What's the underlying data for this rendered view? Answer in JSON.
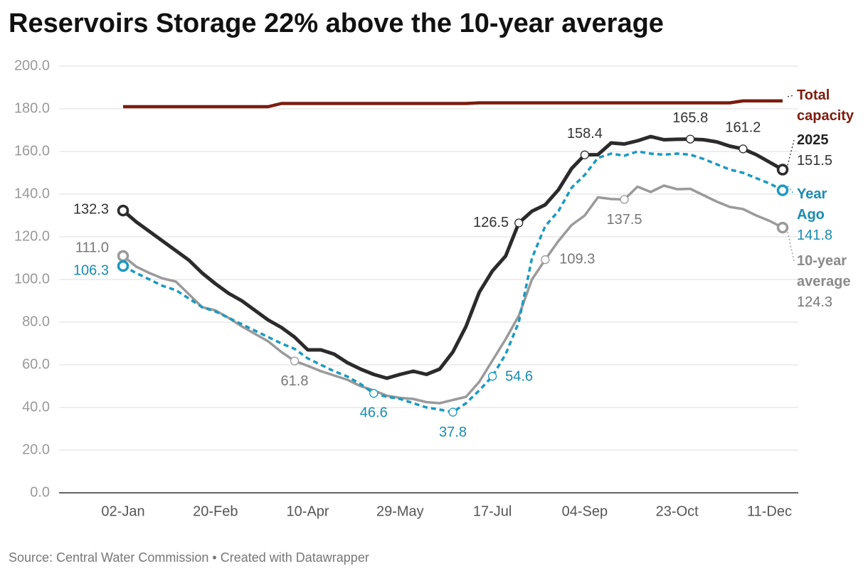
{
  "chart_data": {
    "type": "line",
    "title": "Reservoirs Storage 22% above the 10-year average",
    "source": "Source: Central Water Commission • Created with Datawrapper",
    "categories": [
      "02-Jan",
      null,
      null,
      null,
      null,
      null,
      null,
      "20-Feb",
      null,
      null,
      null,
      null,
      null,
      null,
      "10-Apr",
      null,
      null,
      null,
      null,
      null,
      null,
      "29-May",
      null,
      null,
      null,
      null,
      null,
      null,
      "17-Jul",
      null,
      null,
      null,
      null,
      null,
      null,
      "04-Sep",
      null,
      null,
      null,
      null,
      null,
      null,
      "23-Oct",
      null,
      null,
      null,
      null,
      null,
      null,
      "11-Dec",
      null
    ],
    "ylim": [
      0,
      200
    ],
    "yticks": [
      {
        "value": 0,
        "label": "0.0"
      },
      {
        "value": 20,
        "label": "20.0"
      },
      {
        "value": 40,
        "label": "40.0"
      },
      {
        "value": 60,
        "label": "60.0"
      },
      {
        "value": 80,
        "label": "80.0"
      },
      {
        "value": 100,
        "label": "100.0"
      },
      {
        "value": 120,
        "label": "120.0"
      },
      {
        "value": 140,
        "label": "140.0"
      },
      {
        "value": 160,
        "label": "160.0"
      },
      {
        "value": 180,
        "label": "180.0"
      },
      {
        "value": 200,
        "label": "200.0"
      }
    ],
    "grid": true,
    "series": [
      {
        "name": "Total capacity",
        "color": "#7b1c0e",
        "values": [
          181,
          181,
          181,
          181,
          181,
          181,
          181,
          181,
          181,
          181,
          181,
          181,
          182.5,
          182.5,
          182.5,
          182.5,
          182.5,
          182.5,
          182.5,
          182.5,
          182.5,
          182.5,
          182.5,
          182.5,
          182.5,
          182.5,
          182.5,
          182.8,
          182.8,
          182.8,
          182.8,
          182.8,
          182.8,
          182.8,
          182.8,
          182.8,
          182.8,
          182.8,
          182.8,
          182.8,
          182.8,
          182.8,
          182.8,
          182.8,
          182.8,
          182.8,
          182.8,
          183.7,
          183.7,
          183.7,
          183.7
        ]
      },
      {
        "name": "10-year average",
        "color": "#9a9a9a",
        "values": [
          111,
          106,
          103,
          100.5,
          99,
          93,
          87,
          85.5,
          82,
          78,
          74.5,
          71,
          66,
          61.8,
          59.5,
          57,
          55,
          53,
          50,
          48,
          45.5,
          44.5,
          44,
          42.5,
          42,
          43.5,
          45,
          52,
          62,
          72,
          83,
          100,
          109.3,
          118,
          125.5,
          130,
          138.5,
          137.7,
          137.5,
          143.5,
          141,
          144,
          142.3,
          142.5,
          139.5,
          136.5,
          134,
          133,
          130,
          127.5,
          124.3
        ],
        "value_labels": [
          "111.0",
          null,
          null,
          null,
          null,
          null,
          null,
          null,
          null,
          null,
          null,
          null,
          null,
          "61.8",
          null,
          null,
          null,
          null,
          null,
          null,
          null,
          null,
          null,
          null,
          null,
          null,
          null,
          null,
          null,
          null,
          null,
          null,
          "109.3",
          null,
          null,
          null,
          null,
          null,
          "137.5",
          null,
          null,
          null,
          null,
          null,
          null,
          null,
          null,
          null,
          null,
          null,
          "124.3"
        ]
      },
      {
        "name": "Year Ago",
        "color": "#1b9ac0",
        "dashed": true,
        "values": [
          106.3,
          103,
          100,
          97,
          95,
          91,
          87,
          85,
          82,
          79,
          76,
          73,
          70,
          67.5,
          63,
          60,
          57,
          54.5,
          51,
          46.6,
          45,
          44,
          42,
          40,
          39,
          37.8,
          42,
          48,
          54.6,
          65,
          80,
          110,
          125,
          132,
          143,
          149,
          157,
          159,
          158,
          160,
          159,
          158.5,
          159,
          158.5,
          156.5,
          154,
          151.5,
          150,
          147.5,
          145,
          141.8
        ],
        "value_labels": [
          "106.3",
          null,
          null,
          null,
          null,
          null,
          null,
          null,
          null,
          null,
          null,
          null,
          null,
          null,
          null,
          null,
          null,
          null,
          null,
          "46.6",
          null,
          null,
          null,
          null,
          null,
          "37.8",
          null,
          null,
          "54.6",
          null,
          null,
          null,
          null,
          null,
          null,
          null,
          null,
          null,
          null,
          null,
          null,
          null,
          null,
          null,
          null,
          null,
          null,
          null,
          null,
          null,
          "141.8"
        ]
      },
      {
        "name": "2025",
        "color": "#2b2b2b",
        "values": [
          132.3,
          127,
          122.5,
          118,
          113.5,
          109,
          103,
          98,
          93.5,
          90,
          85.5,
          81,
          77.5,
          73,
          67,
          67,
          65,
          61,
          58,
          55.5,
          53.7,
          55.5,
          57,
          55.5,
          58,
          66,
          78,
          94,
          104,
          111,
          126.5,
          132,
          135,
          142,
          152,
          158.4,
          158.5,
          164,
          163.5,
          165,
          167,
          165.5,
          165.7,
          165.8,
          165.5,
          164.5,
          162.5,
          161.2,
          158.5,
          155,
          151.5
        ],
        "value_labels": [
          "132.3",
          null,
          null,
          null,
          null,
          null,
          null,
          null,
          null,
          null,
          null,
          null,
          null,
          null,
          null,
          null,
          null,
          null,
          null,
          null,
          null,
          null,
          null,
          null,
          null,
          null,
          null,
          null,
          null,
          null,
          "126.5",
          null,
          null,
          null,
          null,
          "158.4",
          null,
          null,
          null,
          null,
          null,
          null,
          null,
          "165.8",
          null,
          null,
          null,
          "161.2",
          null,
          null,
          "151.5"
        ]
      }
    ]
  }
}
